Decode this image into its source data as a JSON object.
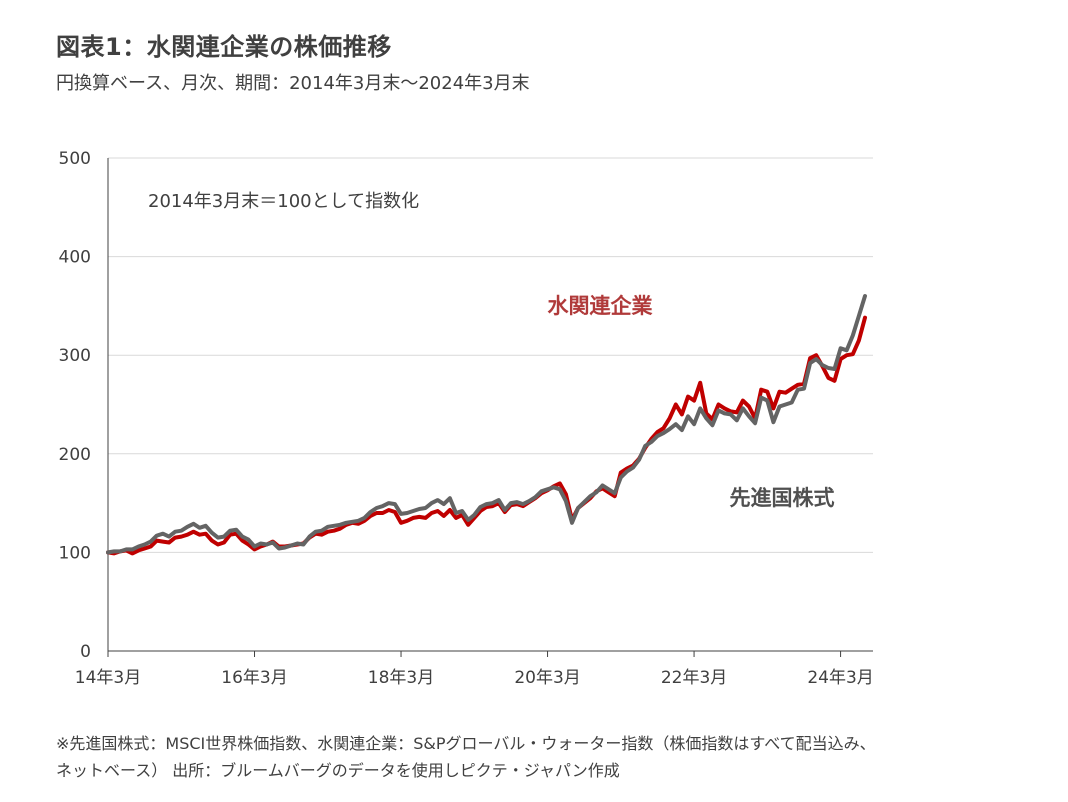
{
  "header": {
    "title": "図表1：水関連企業の株価推移",
    "subtitle": "円換算ベース、月次、期間：2014年3月末～2024年3月末"
  },
  "footnote": {
    "line1": "※先進国株式：MSCI世界株価指数、水関連企業：S&Pグローバル・ウォーター指数（株価指数はすべて配当込み、",
    "line2": "ネットベース） 出所：ブルームバーグのデータを使用しピクテ・ジャパン作成"
  },
  "chart_data": {
    "type": "line",
    "annotation": "2014年3月末＝100として指数化",
    "ylim": [
      0,
      500
    ],
    "yticks": [
      0,
      100,
      200,
      300,
      400,
      500
    ],
    "x_ticks": [
      "14年3月",
      "16年3月",
      "18年3月",
      "20年3月",
      "22年3月",
      "24年3月"
    ],
    "x_start": "2014-03",
    "x_end": "2024-03",
    "grid": "horizontal",
    "series": [
      {
        "name": "水関連企業",
        "color": "#c00000",
        "label_position": "upper-middle",
        "values": [
          100,
          99,
          101,
          102,
          99,
          102,
          104,
          106,
          112,
          111,
          110,
          115,
          116,
          118,
          121,
          118,
          119,
          112,
          108,
          110,
          118,
          119,
          112,
          108,
          103,
          106,
          108,
          111,
          106,
          106,
          107,
          108,
          109,
          115,
          119,
          118,
          121,
          122,
          124,
          128,
          130,
          129,
          132,
          137,
          140,
          140,
          143,
          141,
          130,
          132,
          135,
          136,
          135,
          140,
          142,
          137,
          143,
          135,
          138,
          128,
          135,
          142,
          146,
          147,
          150,
          141,
          148,
          149,
          147,
          151,
          155,
          160,
          163,
          167,
          170,
          159,
          133,
          145,
          150,
          155,
          162,
          165,
          161,
          157,
          181,
          185,
          188,
          195,
          206,
          215,
          222,
          226,
          236,
          250,
          240,
          258,
          254,
          272,
          241,
          235,
          250,
          246,
          243,
          242,
          254,
          248,
          236,
          265,
          263,
          246,
          263,
          262,
          266,
          270,
          271,
          297,
          300,
          289,
          277,
          274,
          296,
          300,
          301,
          315,
          338
        ]
      },
      {
        "name": "先進国株式",
        "color": "#646464",
        "label_position": "lower-right",
        "values": [
          100,
          101,
          101,
          103,
          103,
          106,
          108,
          111,
          117,
          119,
          116,
          121,
          122,
          126,
          129,
          125,
          127,
          120,
          115,
          116,
          122,
          123,
          116,
          113,
          106,
          109,
          108,
          110,
          104,
          105,
          107,
          109,
          108,
          116,
          121,
          122,
          126,
          127,
          128,
          130,
          131,
          132,
          135,
          141,
          145,
          147,
          150,
          149,
          139,
          140,
          142,
          144,
          145,
          150,
          153,
          149,
          155,
          140,
          142,
          133,
          138,
          146,
          149,
          150,
          153,
          143,
          150,
          151,
          149,
          152,
          156,
          162,
          164,
          166,
          164,
          152,
          130,
          145,
          151,
          157,
          161,
          168,
          164,
          160,
          176,
          182,
          186,
          194,
          208,
          212,
          218,
          221,
          225,
          230,
          224,
          238,
          230,
          246,
          236,
          229,
          244,
          241,
          240,
          234,
          246,
          238,
          231,
          257,
          254,
          232,
          248,
          250,
          252,
          265,
          266,
          292,
          296,
          290,
          287,
          286,
          307,
          305,
          320,
          340,
          360
        ]
      }
    ]
  }
}
